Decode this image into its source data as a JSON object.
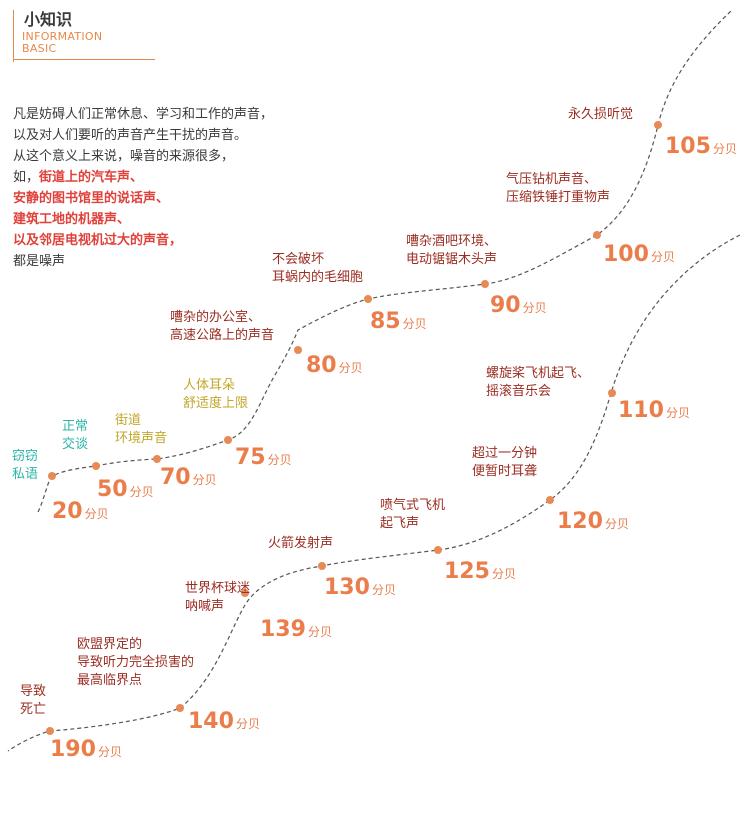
{
  "header": {
    "title": "小知识",
    "subtitle_lines": [
      "INFORMATION",
      "BASIC"
    ]
  },
  "intro": {
    "line1": "凡是妨碍人们正常休息、学习和工作的声音，",
    "line2": "以及对人们要听的声音产生干扰的声音。",
    "line3": "从这个意义上来说，噪音的来源很多，",
    "line4_prefix": "如，",
    "line4_em": "街道上的汽车声、",
    "line5_em": "安静的图书馆里的说话声、",
    "line6_em": "建筑工地的机器声、",
    "line7_em": "以及邻居电视机过大的声音，",
    "line8": "都是噪声"
  },
  "unit": "分贝",
  "colors": {
    "accent": "#ea7d4a",
    "label_dark": "#9b2d22",
    "label_teal": "#2bb5a8",
    "label_olive": "#c4a62a",
    "path": "#555555",
    "dot": "#e88a55"
  },
  "points": [
    {
      "value": "20",
      "label": [
        "窃窃",
        "私语"
      ],
      "color": "teal"
    },
    {
      "value": "50",
      "label": [
        "正常",
        "交谈"
      ],
      "color": "teal"
    },
    {
      "value": "70",
      "label": [
        "街道",
        "环境声音"
      ],
      "color": "olive"
    },
    {
      "value": "75",
      "label": [
        "人体耳朵",
        "舒适度上限"
      ],
      "color": "olive"
    },
    {
      "value": "80",
      "label": [
        "嘈杂的办公室、",
        "高速公路上的声音"
      ],
      "color": "red"
    },
    {
      "value": "85",
      "label": [
        "不会破坏",
        "耳蜗内的毛细胞"
      ],
      "color": "red"
    },
    {
      "value": "90",
      "label": [
        "嘈杂酒吧环境、",
        "电动锯锯木头声"
      ],
      "color": "red"
    },
    {
      "value": "100",
      "label": [
        "气压钻机声音、",
        "压缩铁锤打重物声"
      ],
      "color": "red"
    },
    {
      "value": "105",
      "label": [
        "永久损听觉"
      ],
      "color": "red"
    },
    {
      "value": "110",
      "label": [
        "螺旋桨飞机起飞、",
        "摇滚音乐会"
      ],
      "color": "red"
    },
    {
      "value": "120",
      "label": [
        "超过一分钟",
        "便暂时耳聋"
      ],
      "color": "red"
    },
    {
      "value": "125",
      "label": [
        "喷气式飞机",
        "起飞声"
      ],
      "color": "red"
    },
    {
      "value": "130",
      "label": [
        "火箭发射声"
      ],
      "color": "red"
    },
    {
      "value": "139",
      "label": [
        "世界杯球迷",
        "呐喊声"
      ],
      "color": "red"
    },
    {
      "value": "140",
      "label": [
        "欧盟界定的",
        "导致听力完全损害的",
        "最高临界点"
      ],
      "color": "red"
    },
    {
      "value": "190",
      "label": [
        "导致",
        "死亡"
      ],
      "color": "red"
    }
  ]
}
